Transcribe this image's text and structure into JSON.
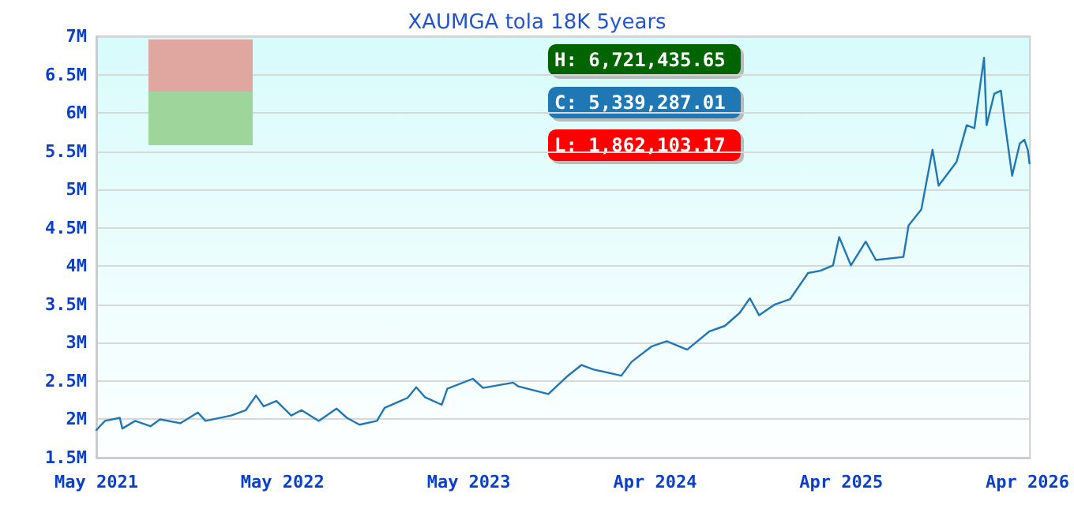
{
  "chart_data": {
    "type": "line",
    "title": "XAUMGA tola 18K 5years",
    "annotations": [
      "H: 6,721,435.65",
      "C: 5,339,287.01",
      "L: 1,862,103.17"
    ],
    "x": [
      "2021-05-01",
      "2021-05-18",
      "2021-06-16",
      "2021-06-21",
      "2021-07-16",
      "2021-08-15",
      "2021-09-03",
      "2021-10-13",
      "2021-11-16",
      "2021-12-01",
      "2022-01-20",
      "2022-02-18",
      "2022-03-10",
      "2022-03-25",
      "2022-04-19",
      "2022-05-18",
      "2022-06-07",
      "2022-07-11",
      "2022-08-15",
      "2022-09-04",
      "2022-09-29",
      "2022-11-02",
      "2022-11-17",
      "2023-01-01",
      "2023-01-18",
      "2023-02-04",
      "2023-03-09",
      "2023-03-20",
      "2023-05-09",
      "2023-05-29",
      "2023-07-27",
      "2023-08-06",
      "2023-10-04",
      "2023-11-08",
      "2023-12-08",
      "2024-01-01",
      "2024-02-24",
      "2024-03-15",
      "2024-04-23",
      "2024-05-23",
      "2024-07-02",
      "2024-08-15",
      "2024-09-14",
      "2024-10-13",
      "2024-11-02",
      "2024-11-20",
      "2024-12-21",
      "2025-01-20",
      "2025-02-24",
      "2025-03-20",
      "2025-04-14",
      "2025-04-26",
      "2025-05-19",
      "2025-06-17",
      "2025-07-07",
      "2025-08-30",
      "2025-09-09",
      "2025-10-04",
      "2025-10-26",
      "2025-11-07",
      "2025-12-12",
      "2026-01-01",
      "2026-01-16",
      "2026-01-28",
      "2026-02-04",
      "2026-02-09",
      "2026-02-24",
      "2026-03-09",
      "2026-03-16",
      "2026-03-31",
      "2026-04-15",
      "2026-04-24",
      "2026-05-01",
      "2026-05-04"
    ],
    "series": [
      {
        "color": "#1f77b4",
        "values": [
          1860000,
          1980000,
          2020000,
          1880000,
          1980000,
          1910000,
          2000000,
          1950000,
          2090000,
          1980000,
          2050000,
          2120000,
          2310000,
          2170000,
          2240000,
          2050000,
          2120000,
          1980000,
          2140000,
          2020000,
          1930000,
          1980000,
          2150000,
          2280000,
          2420000,
          2290000,
          2190000,
          2400000,
          2530000,
          2410000,
          2480000,
          2430000,
          2330000,
          2550000,
          2710000,
          2650000,
          2570000,
          2750000,
          2950000,
          3020000,
          2910000,
          3150000,
          3220000,
          3390000,
          3580000,
          3360000,
          3500000,
          3570000,
          3910000,
          3940000,
          4010000,
          4380000,
          4010000,
          4320000,
          4080000,
          4120000,
          4530000,
          4740000,
          5520000,
          5050000,
          5360000,
          5840000,
          5800000,
          6390000,
          6720000,
          5840000,
          6250000,
          6290000,
          5910000,
          5180000,
          5600000,
          5650000,
          5510000,
          5340000
        ]
      }
    ],
    "xlim": [
      "2021-05-01",
      "2026-05-05"
    ],
    "xticks": [
      {
        "value": "2021-05-01",
        "label": "May 2021"
      },
      {
        "value": "2022-05-01",
        "label": "May 2022"
      },
      {
        "value": "2023-05-01",
        "label": "May 2023"
      },
      {
        "value": "2024-04-30",
        "label": "Apr 2024"
      },
      {
        "value": "2025-04-30",
        "label": "Apr 2025"
      },
      {
        "value": "2026-04-30",
        "label": "Apr 2026"
      }
    ],
    "ylim": [
      1500000,
      7000000
    ],
    "yticks": [
      {
        "value": 1500000,
        "label": "1.5M"
      },
      {
        "value": 2000000,
        "label": "2M"
      },
      {
        "value": 2500000,
        "label": "2.5M"
      },
      {
        "value": 3000000,
        "label": "3M"
      },
      {
        "value": 3500000,
        "label": "3.5M"
      },
      {
        "value": 4000000,
        "label": "4M"
      },
      {
        "value": 4500000,
        "label": "4.5M"
      },
      {
        "value": 5000000,
        "label": "5M"
      },
      {
        "value": 5500000,
        "label": "5.5M"
      },
      {
        "value": 6000000,
        "label": "6M"
      },
      {
        "value": 6500000,
        "label": "6.5M"
      },
      {
        "value": 7000000,
        "label": "7M"
      }
    ],
    "grid": "y",
    "marker": "none",
    "line_style": "solid"
  }
}
